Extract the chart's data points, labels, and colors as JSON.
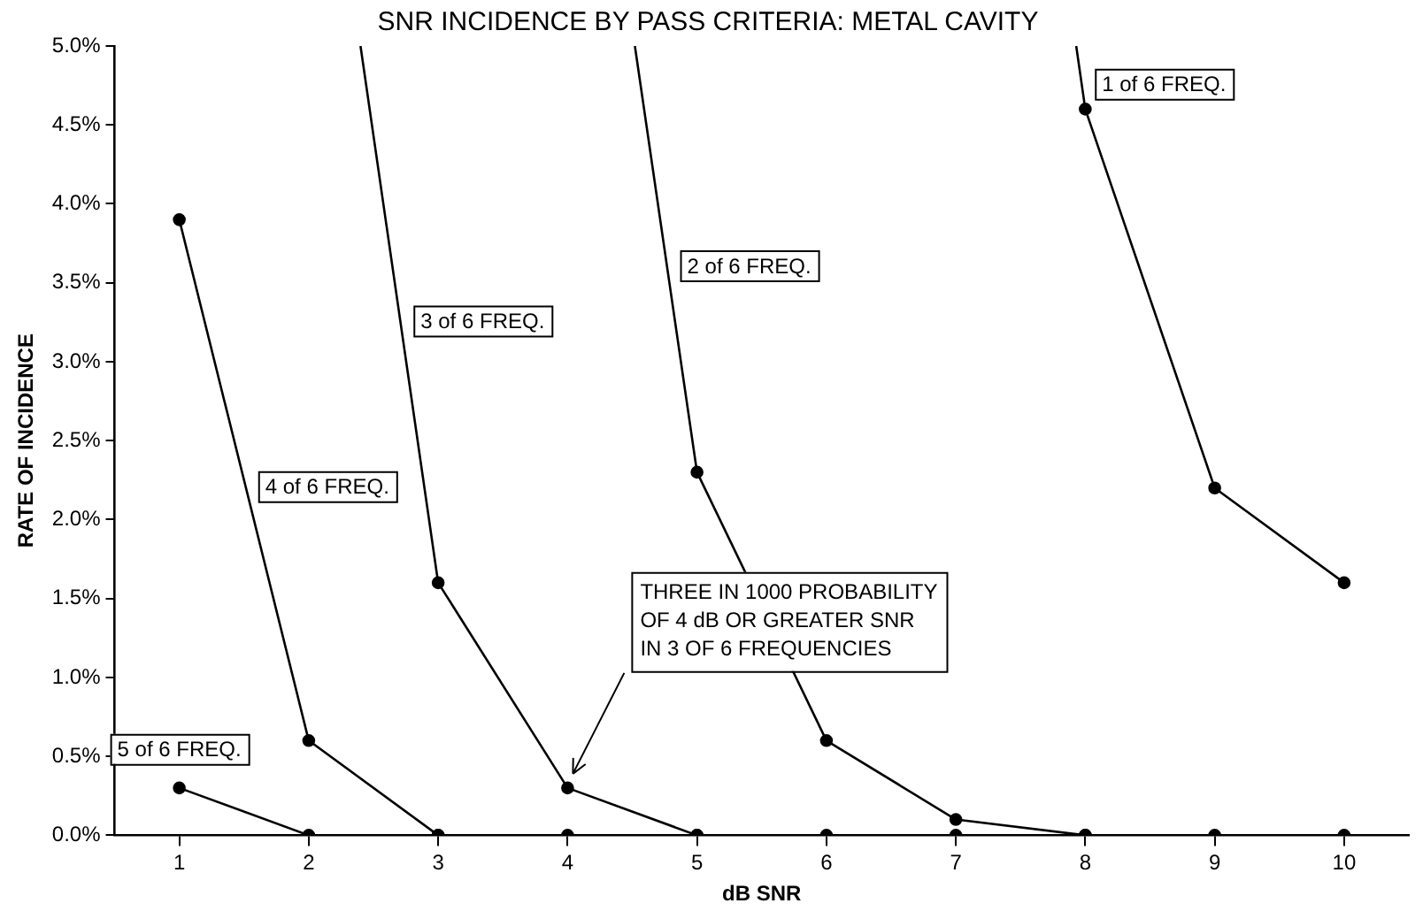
{
  "chart_data": {
    "type": "line",
    "title": "SNR INCIDENCE BY PASS CRITERIA: METAL CAVITY",
    "xlabel": "dB SNR",
    "ylabel": "RATE OF INCIDENCE",
    "xlim": [
      0.5,
      10.5
    ],
    "xticks": [
      1,
      2,
      3,
      4,
      5,
      6,
      7,
      8,
      9,
      10
    ],
    "ylim": [
      0,
      5
    ],
    "yticks": [
      {
        "value": 0,
        "label": "0.0%"
      },
      {
        "value": 0.5,
        "label": "0.5%"
      },
      {
        "value": 1,
        "label": "1.0%"
      },
      {
        "value": 1.5,
        "label": "1.5%"
      },
      {
        "value": 2,
        "label": "2.0%"
      },
      {
        "value": 2.5,
        "label": "2.5%"
      },
      {
        "value": 3,
        "label": "3.0%"
      },
      {
        "value": 3.5,
        "label": "3.5%"
      },
      {
        "value": 4,
        "label": "4.0%"
      },
      {
        "value": 4.5,
        "label": "4.5%"
      },
      {
        "value": 5,
        "label": "5.0%"
      }
    ],
    "grid": false,
    "legend": false,
    "marker": "circle",
    "line_style": "solid",
    "series": [
      {
        "name": "5 of 6 FREQ.",
        "color": "#000000",
        "x": [
          1,
          2,
          3,
          4,
          5,
          6,
          7,
          8,
          9,
          10
        ],
        "values": [
          0.3,
          0,
          0,
          0,
          0,
          0,
          0,
          0,
          0,
          0
        ]
      },
      {
        "name": "4 of 6 FREQ.",
        "color": "#000000",
        "x": [
          1,
          2,
          3
        ],
        "values": [
          3.9,
          0.6,
          0
        ]
      },
      {
        "name": "3 of 6 FREQ.",
        "color": "#000000",
        "x": [
          2.4,
          3,
          4,
          5
        ],
        "values": [
          5,
          1.6,
          0.3,
          0
        ]
      },
      {
        "name": "2 of 6 FREQ.",
        "color": "#000000",
        "x": [
          4.52,
          5,
          6,
          7,
          8
        ],
        "values": [
          5,
          2.3,
          0.6,
          0.1,
          0
        ]
      },
      {
        "name": "1 of 6 FREQ.",
        "color": "#000000",
        "x": [
          7.93,
          8,
          9,
          10
        ],
        "values": [
          5,
          4.6,
          2.2,
          1.6
        ]
      }
    ],
    "annotations": [
      {
        "text": "THREE IN 1000 PROBABILITY\nOF 4 dB OR GREATER SNR\nIN 3 OF 6 FREQUENCIES",
        "x": 4,
        "y": 0.3
      }
    ]
  }
}
